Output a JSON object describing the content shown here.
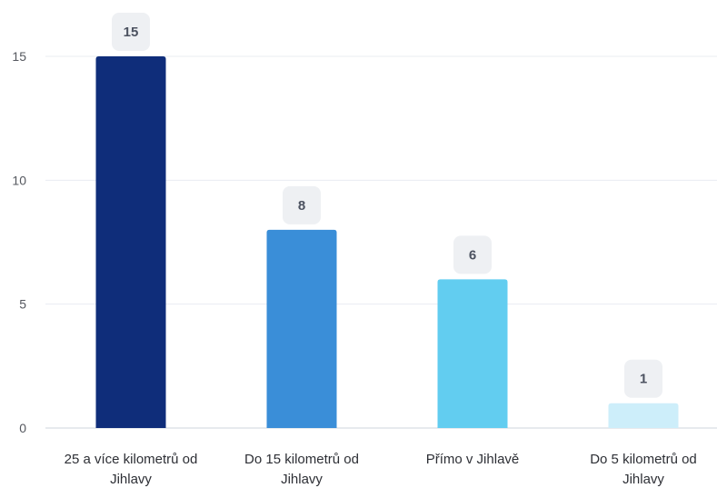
{
  "chart_data": {
    "type": "bar",
    "title": "",
    "xlabel": "",
    "ylabel": "",
    "categories": [
      [
        "25 a více kilometrů od",
        "Jihlavy"
      ],
      [
        "Do 15 kilometrů od",
        "Jihlavy"
      ],
      [
        "Přímo v Jihlavě"
      ],
      [
        "Do 5 kilometrů od",
        "Jihlavy"
      ]
    ],
    "values": [
      15,
      8,
      6,
      1
    ],
    "value_labels": [
      "15",
      "8",
      "6",
      "1"
    ],
    "colors": [
      "#0f2d7a",
      "#3a8ed8",
      "#62cdf0",
      "#cdeefa"
    ],
    "ylim": [
      0,
      15
    ],
    "yticks": [
      0,
      5,
      10,
      15
    ],
    "ytick_labels": [
      "0",
      "5",
      "10",
      "15"
    ],
    "grid": true,
    "legend": "none",
    "data_labels": "above-bar-in-badge"
  }
}
